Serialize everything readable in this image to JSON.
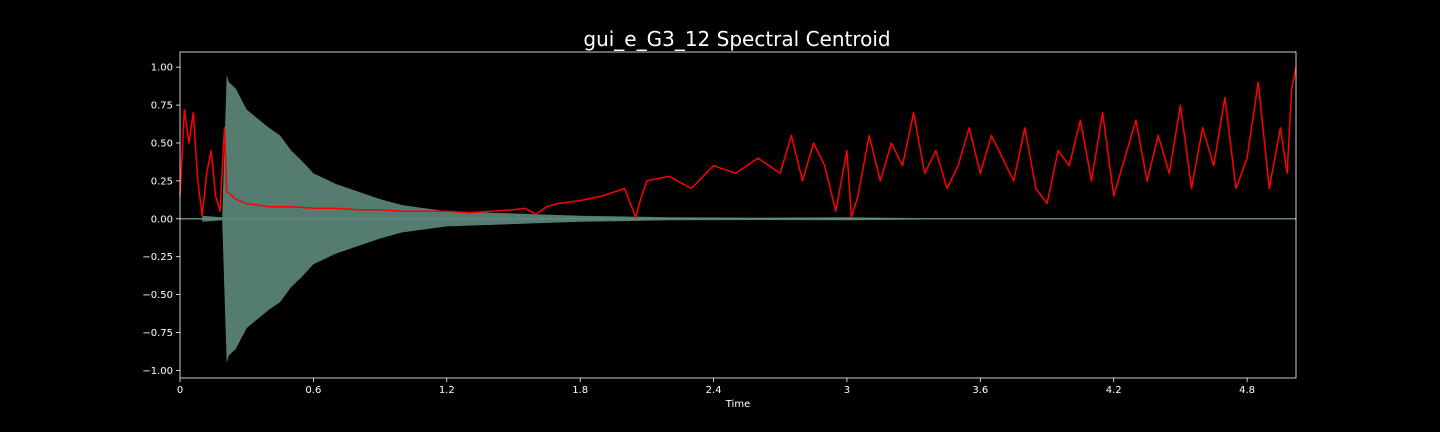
{
  "chart_data": {
    "type": "line",
    "title": "gui_e_G3_12 Spectral Centroid",
    "xlabel": "Time",
    "ylabel": "",
    "xlim": [
      0,
      5.02
    ],
    "ylim": [
      -1.05,
      1.1
    ],
    "grid": false,
    "x_ticks": [
      0,
      0.6,
      1.2,
      1.8,
      2.4,
      3,
      3.6,
      4.2,
      4.8
    ],
    "x_tick_labels": [
      "0",
      "0.6",
      "1.2",
      "1.8",
      "2.4",
      "3",
      "3.6",
      "4.2",
      "4.8"
    ],
    "y_ticks": [
      1.0,
      0.75,
      0.5,
      0.25,
      0.0,
      -0.25,
      -0.5,
      -0.75,
      -1.0
    ],
    "y_tick_labels": [
      "1.00",
      "0.75",
      "0.50",
      "0.25",
      "0.00",
      "−0.25",
      "−0.50",
      "−0.75",
      "−1.00"
    ],
    "colors": {
      "background": "#000000",
      "axes": "#ffffff",
      "waveform": "#5e8a7c",
      "centroid": "#ff0000"
    },
    "waveform_envelope": {
      "name": "waveform",
      "x": [
        0.1,
        0.19,
        0.21,
        0.22,
        0.25,
        0.3,
        0.35,
        0.4,
        0.45,
        0.5,
        0.55,
        0.6,
        0.7,
        0.8,
        0.9,
        1.0,
        1.1,
        1.2,
        1.4,
        1.6,
        1.8,
        2.0,
        2.2,
        2.6,
        3.0,
        3.4,
        5.02
      ],
      "amplitude": [
        0.02,
        0.01,
        0.95,
        0.9,
        0.86,
        0.72,
        0.66,
        0.6,
        0.55,
        0.45,
        0.38,
        0.3,
        0.23,
        0.18,
        0.13,
        0.09,
        0.07,
        0.05,
        0.04,
        0.03,
        0.02,
        0.015,
        0.01,
        0.008,
        0.01,
        0.004,
        0.003
      ]
    },
    "series": [
      {
        "x": [
          0.0,
          0.02,
          0.04,
          0.06,
          0.08,
          0.1,
          0.12,
          0.14,
          0.16,
          0.18,
          0.2,
          0.21,
          0.25,
          0.3,
          0.4,
          0.5,
          0.6,
          0.7,
          0.8,
          0.9,
          1.0,
          1.1,
          1.2,
          1.3,
          1.4,
          1.5,
          1.55,
          1.6,
          1.65,
          1.7,
          1.8,
          1.9,
          2.0,
          2.05,
          2.07,
          2.1,
          2.2,
          2.3,
          2.4,
          2.5,
          2.6,
          2.7,
          2.75,
          2.8,
          2.85,
          2.9,
          2.95,
          3.0,
          3.02,
          3.05,
          3.1,
          3.15,
          3.2,
          3.25,
          3.3,
          3.35,
          3.4,
          3.45,
          3.5,
          3.55,
          3.6,
          3.65,
          3.7,
          3.75,
          3.8,
          3.85,
          3.9,
          3.95,
          4.0,
          4.05,
          4.1,
          4.15,
          4.2,
          4.25,
          4.3,
          4.35,
          4.4,
          4.45,
          4.5,
          4.55,
          4.6,
          4.65,
          4.7,
          4.75,
          4.8,
          4.85,
          4.9,
          4.95,
          4.98,
          5.0,
          5.02
        ],
        "values": [
          0.15,
          0.72,
          0.5,
          0.7,
          0.25,
          0.02,
          0.3,
          0.45,
          0.15,
          0.05,
          0.6,
          0.18,
          0.13,
          0.1,
          0.08,
          0.08,
          0.07,
          0.07,
          0.06,
          0.06,
          0.05,
          0.05,
          0.05,
          0.04,
          0.05,
          0.06,
          0.07,
          0.03,
          0.08,
          0.1,
          0.12,
          0.15,
          0.2,
          0.01,
          0.12,
          0.25,
          0.28,
          0.2,
          0.35,
          0.3,
          0.4,
          0.3,
          0.55,
          0.25,
          0.5,
          0.35,
          0.05,
          0.45,
          0.01,
          0.15,
          0.55,
          0.25,
          0.5,
          0.35,
          0.7,
          0.3,
          0.45,
          0.2,
          0.35,
          0.6,
          0.3,
          0.55,
          0.4,
          0.25,
          0.6,
          0.2,
          0.1,
          0.45,
          0.35,
          0.65,
          0.25,
          0.7,
          0.15,
          0.4,
          0.65,
          0.25,
          0.55,
          0.3,
          0.75,
          0.2,
          0.6,
          0.35,
          0.8,
          0.2,
          0.4,
          0.9,
          0.2,
          0.6,
          0.3,
          0.85,
          1.0
        ]
      }
    ]
  }
}
